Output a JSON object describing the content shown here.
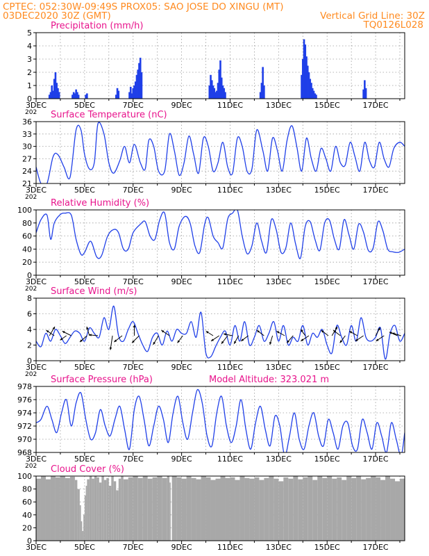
{
  "header": {
    "line1": "CPTEC:   052:30W-09:49S   PROX05: SAO JOSE DO XINGU (MT)",
    "line2_left": "03DEC2020 30Z (GMT)",
    "line2_right": "Vertical Grid Line: 30Z",
    "line3_right": "TQ0126L028",
    "color": "#ff8a1f"
  },
  "style": {
    "title_color": "#e8138c",
    "line_color": "#1f3fe8",
    "bar_color": "#1f3fe8",
    "cloud_color": "#a8a8a8",
    "arrow_color": "#000000"
  },
  "x_tick_labels": [
    "3DEC",
    "5DEC",
    "7DEC",
    "9DEC",
    "11DEC",
    "13DEC",
    "15DEC",
    "17DEC"
  ],
  "x_cut_label": "202",
  "model_altitude": "Model Altitude: 323.021 m",
  "chart_data": [
    {
      "id": "precip",
      "type": "bar",
      "title": "Precipitation (mm/h)",
      "ylim": [
        0,
        5
      ],
      "yticks": [
        0,
        1,
        2,
        3,
        4,
        5
      ],
      "x_range_days": [
        3,
        18.2
      ],
      "x": [
        3.55,
        3.6,
        3.65,
        3.7,
        3.75,
        3.8,
        3.85,
        3.9,
        3.95,
        4.5,
        4.55,
        4.6,
        4.65,
        4.7,
        4.75,
        5.05,
        5.1,
        6.3,
        6.35,
        6.4,
        6.85,
        6.9,
        6.95,
        7.0,
        7.05,
        7.1,
        7.15,
        7.2,
        7.25,
        7.3,
        7.35,
        10.15,
        10.2,
        10.25,
        10.3,
        10.35,
        10.4,
        10.45,
        10.5,
        10.55,
        10.6,
        10.65,
        10.7,
        10.75,
        10.8,
        12.25,
        12.3,
        12.35,
        12.4,
        13.95,
        14.0,
        14.05,
        14.1,
        14.15,
        14.2,
        14.25,
        14.3,
        14.35,
        14.4,
        14.45,
        14.5,
        14.55,
        16.5,
        16.55,
        16.6
      ],
      "values": [
        0.3,
        0.5,
        1.0,
        0.6,
        1.5,
        2.0,
        1.2,
        0.8,
        0.5,
        0.3,
        0.5,
        0.4,
        0.7,
        0.5,
        0.3,
        0.3,
        0.4,
        0.3,
        0.8,
        0.6,
        0.5,
        0.9,
        0.4,
        0.8,
        1.0,
        1.3,
        1.8,
        2.2,
        2.7,
        3.1,
        2.0,
        1.0,
        1.8,
        1.4,
        1.0,
        0.8,
        0.5,
        0.6,
        1.2,
        2.2,
        2.9,
        1.6,
        1.0,
        0.8,
        0.5,
        0.5,
        1.2,
        2.4,
        1.0,
        1.8,
        3.0,
        4.5,
        4.1,
        3.2,
        2.5,
        2.0,
        1.5,
        1.2,
        0.8,
        0.6,
        0.4,
        0.3,
        0.7,
        1.4,
        0.8
      ]
    },
    {
      "id": "temp",
      "type": "line",
      "title": "Surface Temperature (nC)",
      "ylim": [
        21,
        36
      ],
      "yticks": [
        21,
        24,
        27,
        30,
        33,
        36
      ],
      "x_range_days": [
        3,
        18.2
      ],
      "x": [
        3.0,
        3.2,
        3.45,
        3.7,
        3.9,
        4.15,
        4.4,
        4.65,
        4.85,
        5.0,
        5.2,
        5.4,
        5.55,
        5.8,
        6.0,
        6.2,
        6.45,
        6.65,
        6.85,
        7.05,
        7.3,
        7.5,
        7.65,
        7.85,
        8.05,
        8.3,
        8.5,
        8.7,
        8.9,
        9.1,
        9.3,
        9.5,
        9.7,
        9.9,
        10.1,
        10.3,
        10.5,
        10.7,
        10.9,
        11.1,
        11.3,
        11.5,
        11.7,
        11.9,
        12.1,
        12.35,
        12.55,
        12.75,
        12.95,
        13.15,
        13.35,
        13.55,
        13.75,
        13.95,
        14.15,
        14.35,
        14.55,
        14.75,
        14.95,
        15.15,
        15.35,
        15.55,
        15.75,
        15.95,
        16.15,
        16.35,
        16.55,
        16.75,
        16.95,
        17.15,
        17.35,
        17.55,
        17.75,
        18.0,
        18.2
      ],
      "values": [
        25.0,
        21.0,
        21.0,
        27.5,
        28.0,
        25.0,
        22.5,
        34.0,
        34.0,
        28.0,
        24.5,
        26.0,
        35.5,
        33.0,
        26.0,
        23.5,
        26.5,
        30.0,
        26.0,
        30.5,
        26.0,
        24.5,
        31.5,
        30.0,
        24.0,
        24.0,
        33.0,
        29.0,
        23.0,
        26.0,
        32.5,
        28.0,
        23.5,
        32.0,
        30.0,
        24.0,
        26.0,
        31.0,
        25.0,
        23.5,
        32.0,
        30.0,
        24.0,
        24.5,
        34.0,
        29.0,
        24.0,
        32.0,
        29.0,
        24.0,
        31.5,
        35.0,
        30.0,
        24.0,
        32.0,
        27.0,
        24.0,
        29.5,
        27.0,
        24.0,
        30.0,
        26.0,
        25.5,
        31.0,
        27.5,
        24.0,
        31.0,
        26.5,
        25.0,
        31.0,
        27.0,
        25.0,
        29.5,
        31.0,
        30.0
      ]
    },
    {
      "id": "rh",
      "type": "line",
      "title": "Relative Humidity (%)",
      "ylim": [
        0,
        100
      ],
      "yticks": [
        0,
        20,
        40,
        60,
        80,
        100
      ],
      "x_range_days": [
        3,
        18.2
      ],
      "x": [
        3.0,
        3.2,
        3.45,
        3.6,
        3.75,
        4.0,
        4.2,
        4.45,
        4.65,
        4.85,
        5.0,
        5.25,
        5.5,
        5.7,
        5.95,
        6.2,
        6.4,
        6.6,
        6.8,
        7.0,
        7.3,
        7.5,
        7.7,
        7.9,
        8.1,
        8.3,
        8.5,
        8.7,
        8.9,
        9.15,
        9.35,
        9.55,
        9.75,
        9.95,
        10.1,
        10.3,
        10.5,
        10.7,
        10.9,
        11.1,
        11.3,
        11.5,
        11.7,
        11.9,
        12.1,
        12.3,
        12.5,
        12.7,
        12.9,
        13.1,
        13.3,
        13.5,
        13.7,
        13.9,
        14.1,
        14.3,
        14.5,
        14.7,
        14.9,
        15.1,
        15.3,
        15.5,
        15.7,
        15.9,
        16.1,
        16.3,
        16.5,
        16.7,
        16.9,
        17.1,
        17.3,
        17.5,
        17.7,
        17.95,
        18.2
      ],
      "values": [
        65.0,
        85.0,
        92.0,
        55.0,
        80.0,
        93.0,
        95.0,
        92.0,
        55.0,
        32.0,
        35.0,
        52.0,
        28.0,
        30.0,
        60.0,
        70.0,
        65.0,
        40.0,
        40.0,
        65.0,
        78.0,
        82.0,
        60.0,
        55.0,
        85.0,
        95.0,
        50.0,
        40.0,
        75.0,
        90.0,
        80.0,
        45.0,
        35.0,
        78.0,
        88.0,
        60.0,
        50.0,
        42.0,
        86.0,
        95.0,
        100.0,
        60.0,
        33.0,
        45.0,
        80.0,
        52.0,
        35.0,
        85.0,
        70.0,
        35.0,
        42.0,
        80.0,
        48.0,
        26.0,
        75.0,
        82.0,
        55.0,
        38.0,
        80.0,
        84.0,
        55.0,
        40.0,
        85.0,
        62.0,
        40.0,
        78.0,
        66.0,
        38.0,
        42.0,
        82.0,
        68.0,
        40.0,
        36.0,
        35.0,
        40.0
      ]
    },
    {
      "id": "wind",
      "type": "line",
      "title": "Surface Wind (m/s)",
      "ylim": [
        0,
        8
      ],
      "yticks": [
        0,
        2,
        4,
        6,
        8
      ],
      "x_range_days": [
        3,
        18.2
      ],
      "x": [
        3.0,
        3.2,
        3.4,
        3.6,
        3.8,
        4.0,
        4.2,
        4.4,
        4.6,
        4.8,
        5.0,
        5.2,
        5.4,
        5.6,
        5.8,
        6.0,
        6.2,
        6.4,
        6.6,
        6.8,
        7.0,
        7.2,
        7.4,
        7.6,
        7.8,
        8.0,
        8.2,
        8.4,
        8.6,
        8.8,
        9.0,
        9.2,
        9.4,
        9.6,
        9.8,
        10.0,
        10.2,
        10.4,
        10.6,
        10.8,
        11.0,
        11.2,
        11.4,
        11.6,
        11.8,
        12.0,
        12.2,
        12.4,
        12.6,
        12.8,
        13.0,
        13.2,
        13.4,
        13.6,
        13.8,
        14.0,
        14.2,
        14.4,
        14.6,
        14.8,
        15.0,
        15.2,
        15.4,
        15.6,
        15.8,
        16.0,
        16.2,
        16.4,
        16.6,
        16.8,
        17.0,
        17.2,
        17.4,
        17.6,
        17.8,
        18.0,
        18.2
      ],
      "values": [
        2.5,
        1.8,
        3.5,
        2.5,
        4.0,
        3.2,
        2.2,
        3.0,
        3.8,
        3.5,
        2.5,
        4.2,
        3.5,
        3.0,
        5.5,
        4.0,
        7.0,
        3.2,
        2.5,
        4.0,
        5.0,
        3.5,
        2.0,
        1.2,
        3.0,
        3.5,
        2.0,
        3.8,
        2.5,
        4.0,
        3.5,
        3.5,
        5.0,
        3.0,
        6.2,
        1.0,
        0.5,
        1.8,
        3.0,
        3.8,
        2.0,
        4.5,
        2.5,
        5.0,
        2.0,
        3.0,
        4.5,
        2.5,
        3.5,
        5.0,
        2.5,
        4.5,
        2.0,
        3.0,
        2.5,
        4.5,
        2.0,
        3.5,
        3.0,
        4.0,
        2.0,
        1.0,
        4.5,
        3.0,
        2.0,
        4.5,
        2.5,
        5.5,
        3.0,
        2.5,
        3.0,
        4.2,
        0.2,
        3.5,
        4.5,
        2.5,
        3.5
      ],
      "arrows": [
        {
          "x": 3.55,
          "u": 0.6,
          "v": 1.0
        },
        {
          "x": 3.75,
          "u": -0.9,
          "v": 0.6
        },
        {
          "x": 4.25,
          "u": -0.7,
          "v": -0.5
        },
        {
          "x": 4.45,
          "u": -1.0,
          "v": 0.5
        },
        {
          "x": 5.1,
          "u": -0.8,
          "v": -0.7
        },
        {
          "x": 5.2,
          "u": -0.3,
          "v": 1.0
        },
        {
          "x": 5.55,
          "u": -1.0,
          "v": 0.1
        },
        {
          "x": 6.15,
          "u": -0.3,
          "v": -2.0
        },
        {
          "x": 6.55,
          "u": -0.9,
          "v": -0.7
        },
        {
          "x": 7.05,
          "u": 0.0,
          "v": 1.2
        },
        {
          "x": 7.25,
          "u": -0.8,
          "v": -0.8
        },
        {
          "x": 8.05,
          "u": -0.6,
          "v": -1.0
        },
        {
          "x": 8.5,
          "u": -0.9,
          "v": 0.6
        },
        {
          "x": 9.05,
          "u": -0.6,
          "v": -0.8
        },
        {
          "x": 10.3,
          "u": -0.8,
          "v": 0.5
        },
        {
          "x": 10.55,
          "u": -0.9,
          "v": -0.6
        },
        {
          "x": 10.9,
          "u": -0.7,
          "v": -0.9
        },
        {
          "x": 11.1,
          "u": -1.0,
          "v": 0.2
        },
        {
          "x": 11.35,
          "u": -0.5,
          "v": -0.9
        },
        {
          "x": 11.75,
          "u": -0.8,
          "v": -0.6
        },
        {
          "x": 12.4,
          "u": -0.8,
          "v": 0.6
        },
        {
          "x": 12.75,
          "u": -0.3,
          "v": -1.0
        },
        {
          "x": 13.25,
          "u": -0.9,
          "v": 0.5
        },
        {
          "x": 13.6,
          "u": -0.7,
          "v": -0.8
        },
        {
          "x": 14.1,
          "u": -0.5,
          "v": 0.7
        },
        {
          "x": 14.25,
          "u": -0.9,
          "v": -0.6
        },
        {
          "x": 15.05,
          "u": -0.8,
          "v": 0.6
        },
        {
          "x": 15.2,
          "u": 0.6,
          "v": 1.0
        },
        {
          "x": 15.55,
          "u": -0.8,
          "v": 0.6
        },
        {
          "x": 15.75,
          "u": -0.6,
          "v": -0.8
        },
        {
          "x": 16.25,
          "u": -0.9,
          "v": 0.5
        },
        {
          "x": 16.5,
          "u": -0.9,
          "v": -0.6
        },
        {
          "x": 17.0,
          "u": 0.5,
          "v": 0.9
        },
        {
          "x": 17.35,
          "u": -0.9,
          "v": -0.6
        },
        {
          "x": 17.9,
          "u": -0.9,
          "v": 0.4
        },
        {
          "x": 18.05,
          "u": -1.0,
          "v": 0.3
        }
      ]
    },
    {
      "id": "pressure",
      "type": "line",
      "title": "Surface Pressure (hPa)",
      "ylim": [
        968,
        978
      ],
      "yticks": [
        968,
        970,
        972,
        974,
        976,
        978
      ],
      "x_range_days": [
        3,
        18.2
      ],
      "x": [
        3.0,
        3.2,
        3.45,
        3.65,
        3.85,
        4.05,
        4.25,
        4.45,
        4.65,
        4.85,
        5.05,
        5.25,
        5.45,
        5.65,
        5.85,
        6.05,
        6.25,
        6.45,
        6.65,
        6.85,
        7.05,
        7.25,
        7.45,
        7.65,
        7.85,
        8.05,
        8.25,
        8.45,
        8.65,
        8.85,
        9.05,
        9.25,
        9.45,
        9.65,
        9.85,
        10.05,
        10.25,
        10.45,
        10.65,
        10.85,
        11.05,
        11.25,
        11.45,
        11.65,
        11.85,
        12.05,
        12.25,
        12.45,
        12.65,
        12.85,
        13.05,
        13.25,
        13.45,
        13.65,
        13.85,
        14.05,
        14.25,
        14.45,
        14.65,
        14.85,
        15.05,
        15.25,
        15.45,
        15.65,
        15.85,
        16.05,
        16.25,
        16.45,
        16.65,
        16.85,
        17.05,
        17.25,
        17.45,
        17.65,
        17.85,
        18.05,
        18.2
      ],
      "values": [
        972.5,
        973.0,
        975.0,
        973.0,
        971.0,
        974.0,
        976.0,
        972.0,
        975.5,
        977.0,
        973.0,
        970.0,
        971.0,
        974.5,
        972.0,
        970.5,
        973.0,
        975.0,
        971.5,
        968.5,
        974.5,
        976.5,
        973.0,
        969.0,
        972.0,
        975.0,
        973.0,
        969.5,
        974.0,
        976.5,
        972.5,
        970.0,
        974.0,
        977.5,
        975.5,
        970.5,
        969.0,
        974.0,
        976.5,
        972.0,
        969.5,
        972.0,
        976.0,
        971.5,
        968.5,
        972.5,
        975.0,
        971.5,
        969.0,
        973.5,
        972.0,
        967.5,
        970.5,
        974.0,
        970.0,
        968.5,
        972.0,
        974.0,
        970.5,
        969.0,
        973.0,
        971.0,
        968.5,
        972.0,
        972.5,
        969.0,
        968.5,
        973.0,
        971.0,
        968.5,
        972.5,
        970.5,
        968.0,
        972.5,
        970.0,
        967.5,
        971.0
      ]
    },
    {
      "id": "cloud",
      "type": "bar",
      "title": "Cloud Cover (%)",
      "ylim": [
        0,
        100
      ],
      "yticks": [
        0,
        20,
        40,
        60,
        80,
        100
      ],
      "x_range_days": [
        3,
        18.2
      ],
      "x": [
        3.0,
        3.2,
        3.4,
        3.6,
        3.8,
        4.0,
        4.2,
        4.4,
        4.6,
        4.7,
        4.8,
        4.85,
        4.9,
        4.95,
        5.0,
        5.05,
        5.1,
        5.2,
        5.3,
        5.4,
        5.5,
        5.6,
        5.7,
        5.8,
        5.9,
        6.0,
        6.1,
        6.2,
        6.3,
        6.4,
        6.5,
        6.6,
        6.8,
        7.0,
        7.2,
        7.4,
        7.6,
        7.8,
        8.0,
        8.2,
        8.4,
        8.5,
        8.55,
        8.6,
        8.8,
        9.0,
        9.2,
        9.4,
        9.6,
        9.8,
        10.0,
        10.2,
        10.4,
        10.6,
        10.8,
        11.0,
        11.2,
        11.4,
        11.6,
        11.8,
        12.0,
        12.2,
        12.4,
        12.6,
        12.8,
        13.0,
        13.2,
        13.4,
        13.6,
        13.8,
        14.0,
        14.2,
        14.4,
        14.6,
        14.8,
        15.0,
        15.2,
        15.4,
        15.6,
        15.8,
        16.0,
        16.2,
        16.4,
        16.6,
        16.8,
        17.0,
        17.2,
        17.4,
        17.6,
        17.8,
        18.0,
        18.2
      ],
      "values": [
        96,
        100,
        95,
        100,
        98,
        100,
        97,
        99,
        94,
        80,
        55,
        30,
        15,
        40,
        70,
        85,
        95,
        100,
        96,
        100,
        98,
        90,
        100,
        94,
        97,
        85,
        100,
        92,
        78,
        96,
        100,
        95,
        98,
        100,
        97,
        100,
        96,
        98,
        100,
        97,
        100,
        90,
        0,
        100,
        98,
        96,
        100,
        97,
        95,
        100,
        98,
        94,
        96,
        100,
        97,
        98,
        94,
        100,
        97,
        96,
        98,
        94,
        97,
        100,
        96,
        92,
        98,
        96,
        100,
        95,
        98,
        100,
        94,
        100,
        97,
        100,
        96,
        98,
        94,
        100,
        97,
        100,
        95,
        97,
        100,
        98,
        94,
        100,
        96,
        92,
        96,
        98
      ]
    }
  ]
}
